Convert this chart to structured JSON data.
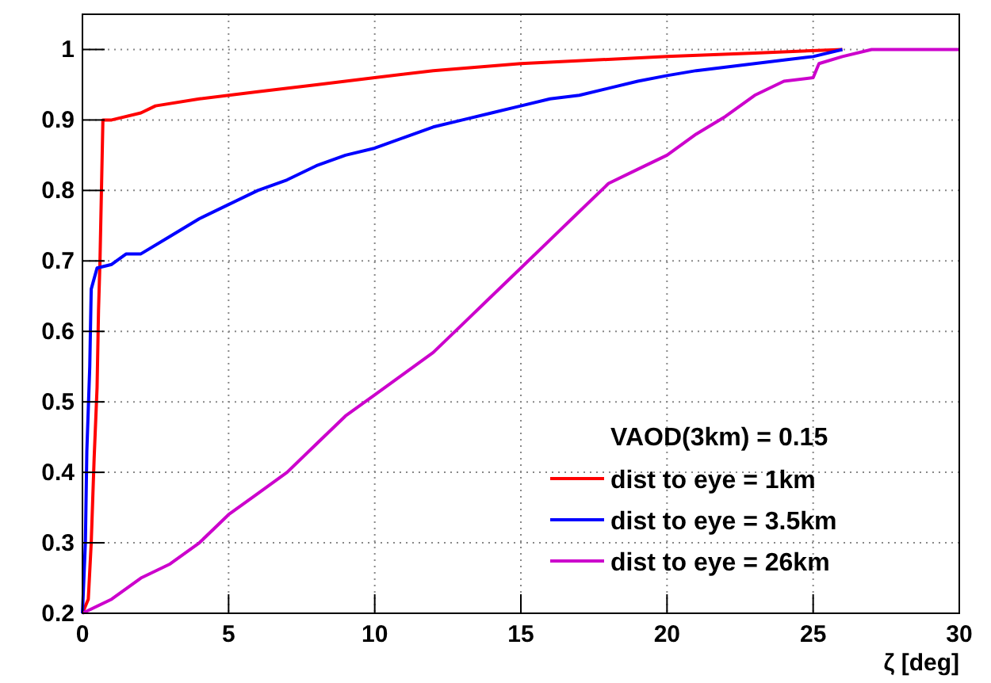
{
  "chart_data": {
    "type": "line",
    "xlabel": "ζ [deg]",
    "legend_title": "VAOD(3km) = 0.15",
    "xlim": [
      0,
      30
    ],
    "ylim": [
      0.2,
      1.05
    ],
    "xticks": [
      0,
      5,
      10,
      15,
      20,
      25,
      30
    ],
    "yticks": [
      0.2,
      0.3,
      0.4,
      0.5,
      0.6,
      0.7,
      0.8,
      0.9,
      1
    ],
    "grid": true,
    "legend": "bottom right",
    "line_style": "solid",
    "marker": "none",
    "series": [
      {
        "name": "dist to eye = 1km",
        "color": "#ff0000",
        "x": [
          0,
          0.2,
          0.3,
          0.4,
          0.5,
          0.55,
          0.6,
          0.65,
          0.7,
          1,
          2,
          2.5,
          4,
          6,
          8,
          10,
          12,
          15,
          20,
          23,
          26
        ],
        "values": [
          0.2,
          0.22,
          0.3,
          0.42,
          0.52,
          0.63,
          0.7,
          0.8,
          0.9,
          0.9,
          0.91,
          0.92,
          0.93,
          0.94,
          0.95,
          0.96,
          0.97,
          0.98,
          0.99,
          0.995,
          1
        ]
      },
      {
        "name": "dist to eye = 3.5km",
        "color": "#0000ff",
        "x": [
          0,
          0.1,
          0.15,
          0.25,
          0.3,
          0.5,
          1,
          1.5,
          2,
          3,
          4,
          5,
          6,
          7,
          8,
          9,
          10,
          11,
          12,
          13,
          14,
          15,
          16,
          17,
          18,
          19,
          20,
          21,
          22,
          24,
          25,
          26
        ],
        "values": [
          0.2,
          0.3,
          0.43,
          0.55,
          0.66,
          0.69,
          0.695,
          0.71,
          0.71,
          0.735,
          0.76,
          0.78,
          0.8,
          0.815,
          0.835,
          0.85,
          0.86,
          0.875,
          0.89,
          0.9,
          0.91,
          0.92,
          0.93,
          0.935,
          0.945,
          0.955,
          0.963,
          0.97,
          0.975,
          0.985,
          0.99,
          1
        ]
      },
      {
        "name": "dist to eye = 26km",
        "color": "#cc00cc",
        "x": [
          0,
          1,
          2,
          3,
          4,
          5,
          6,
          7,
          8,
          9,
          10,
          11,
          12,
          13,
          14,
          15,
          16,
          17,
          18,
          19,
          20,
          21,
          22,
          23,
          24,
          25,
          25.2,
          26,
          27,
          27.3,
          30
        ],
        "values": [
          0.2,
          0.22,
          0.25,
          0.27,
          0.3,
          0.34,
          0.37,
          0.4,
          0.44,
          0.48,
          0.51,
          0.54,
          0.57,
          0.61,
          0.65,
          0.69,
          0.73,
          0.77,
          0.81,
          0.83,
          0.85,
          0.88,
          0.905,
          0.935,
          0.955,
          0.96,
          0.98,
          0.99,
          1,
          1,
          1
        ]
      }
    ]
  }
}
